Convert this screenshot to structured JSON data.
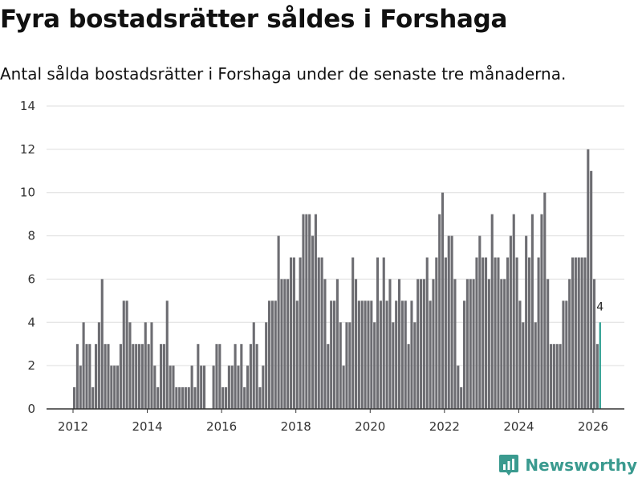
{
  "title": "Fyra bostadsrätter såldes i Forshaga",
  "subtitle": "Antal sålda bostadsrätter i Forshaga under de senaste tre månaderna.",
  "brand": {
    "name": "Newsworthy",
    "color": "#3a9a8f"
  },
  "colors": {
    "bar": "#6d6d72",
    "highlight": "#2a9d8f",
    "grid": "#dddddd",
    "axis": "#333333"
  },
  "chart_data": {
    "type": "bar",
    "title": "Fyra bostadsrätter såldes i Forshaga",
    "xlabel": "",
    "ylabel": "",
    "ylim": [
      0,
      14
    ],
    "y_ticks": [
      0,
      2,
      4,
      6,
      8,
      10,
      12,
      14
    ],
    "x_ticks": [
      "2012",
      "2014",
      "2016",
      "2018",
      "2020",
      "2022",
      "2024",
      "2026"
    ],
    "start": "2012-01",
    "frequency": "monthly",
    "values": [
      1,
      3,
      2,
      4,
      3,
      3,
      1,
      3,
      4,
      6,
      3,
      3,
      2,
      2,
      2,
      3,
      5,
      5,
      4,
      3,
      3,
      3,
      3,
      4,
      3,
      4,
      2,
      1,
      3,
      3,
      5,
      2,
      2,
      1,
      1,
      1,
      1,
      1,
      2,
      1,
      3,
      2,
      2,
      0,
      0,
      2,
      3,
      3,
      1,
      1,
      2,
      2,
      3,
      2,
      3,
      1,
      2,
      3,
      4,
      3,
      1,
      2,
      4,
      5,
      5,
      5,
      8,
      6,
      6,
      6,
      7,
      7,
      5,
      7,
      9,
      9,
      9,
      8,
      9,
      7,
      7,
      6,
      3,
      5,
      5,
      6,
      4,
      2,
      4,
      4,
      7,
      6,
      5,
      5,
      5,
      5,
      5,
      4,
      7,
      5,
      7,
      5,
      6,
      4,
      5,
      6,
      5,
      5,
      3,
      5,
      4,
      6,
      6,
      6,
      7,
      5,
      6,
      7,
      9,
      10,
      7,
      8,
      8,
      6,
      2,
      1,
      5,
      6,
      6,
      6,
      7,
      8,
      7,
      7,
      6,
      9,
      7,
      7,
      6,
      6,
      7,
      8,
      9,
      7,
      5,
      4,
      8,
      7,
      9,
      4,
      7,
      9,
      10,
      6,
      3,
      3,
      3,
      3,
      5,
      5,
      6,
      7,
      7,
      7,
      7,
      7,
      12,
      11,
      6,
      3,
      4
    ],
    "highlight_last": true,
    "annotation": {
      "label": "4",
      "target": "last"
    }
  }
}
